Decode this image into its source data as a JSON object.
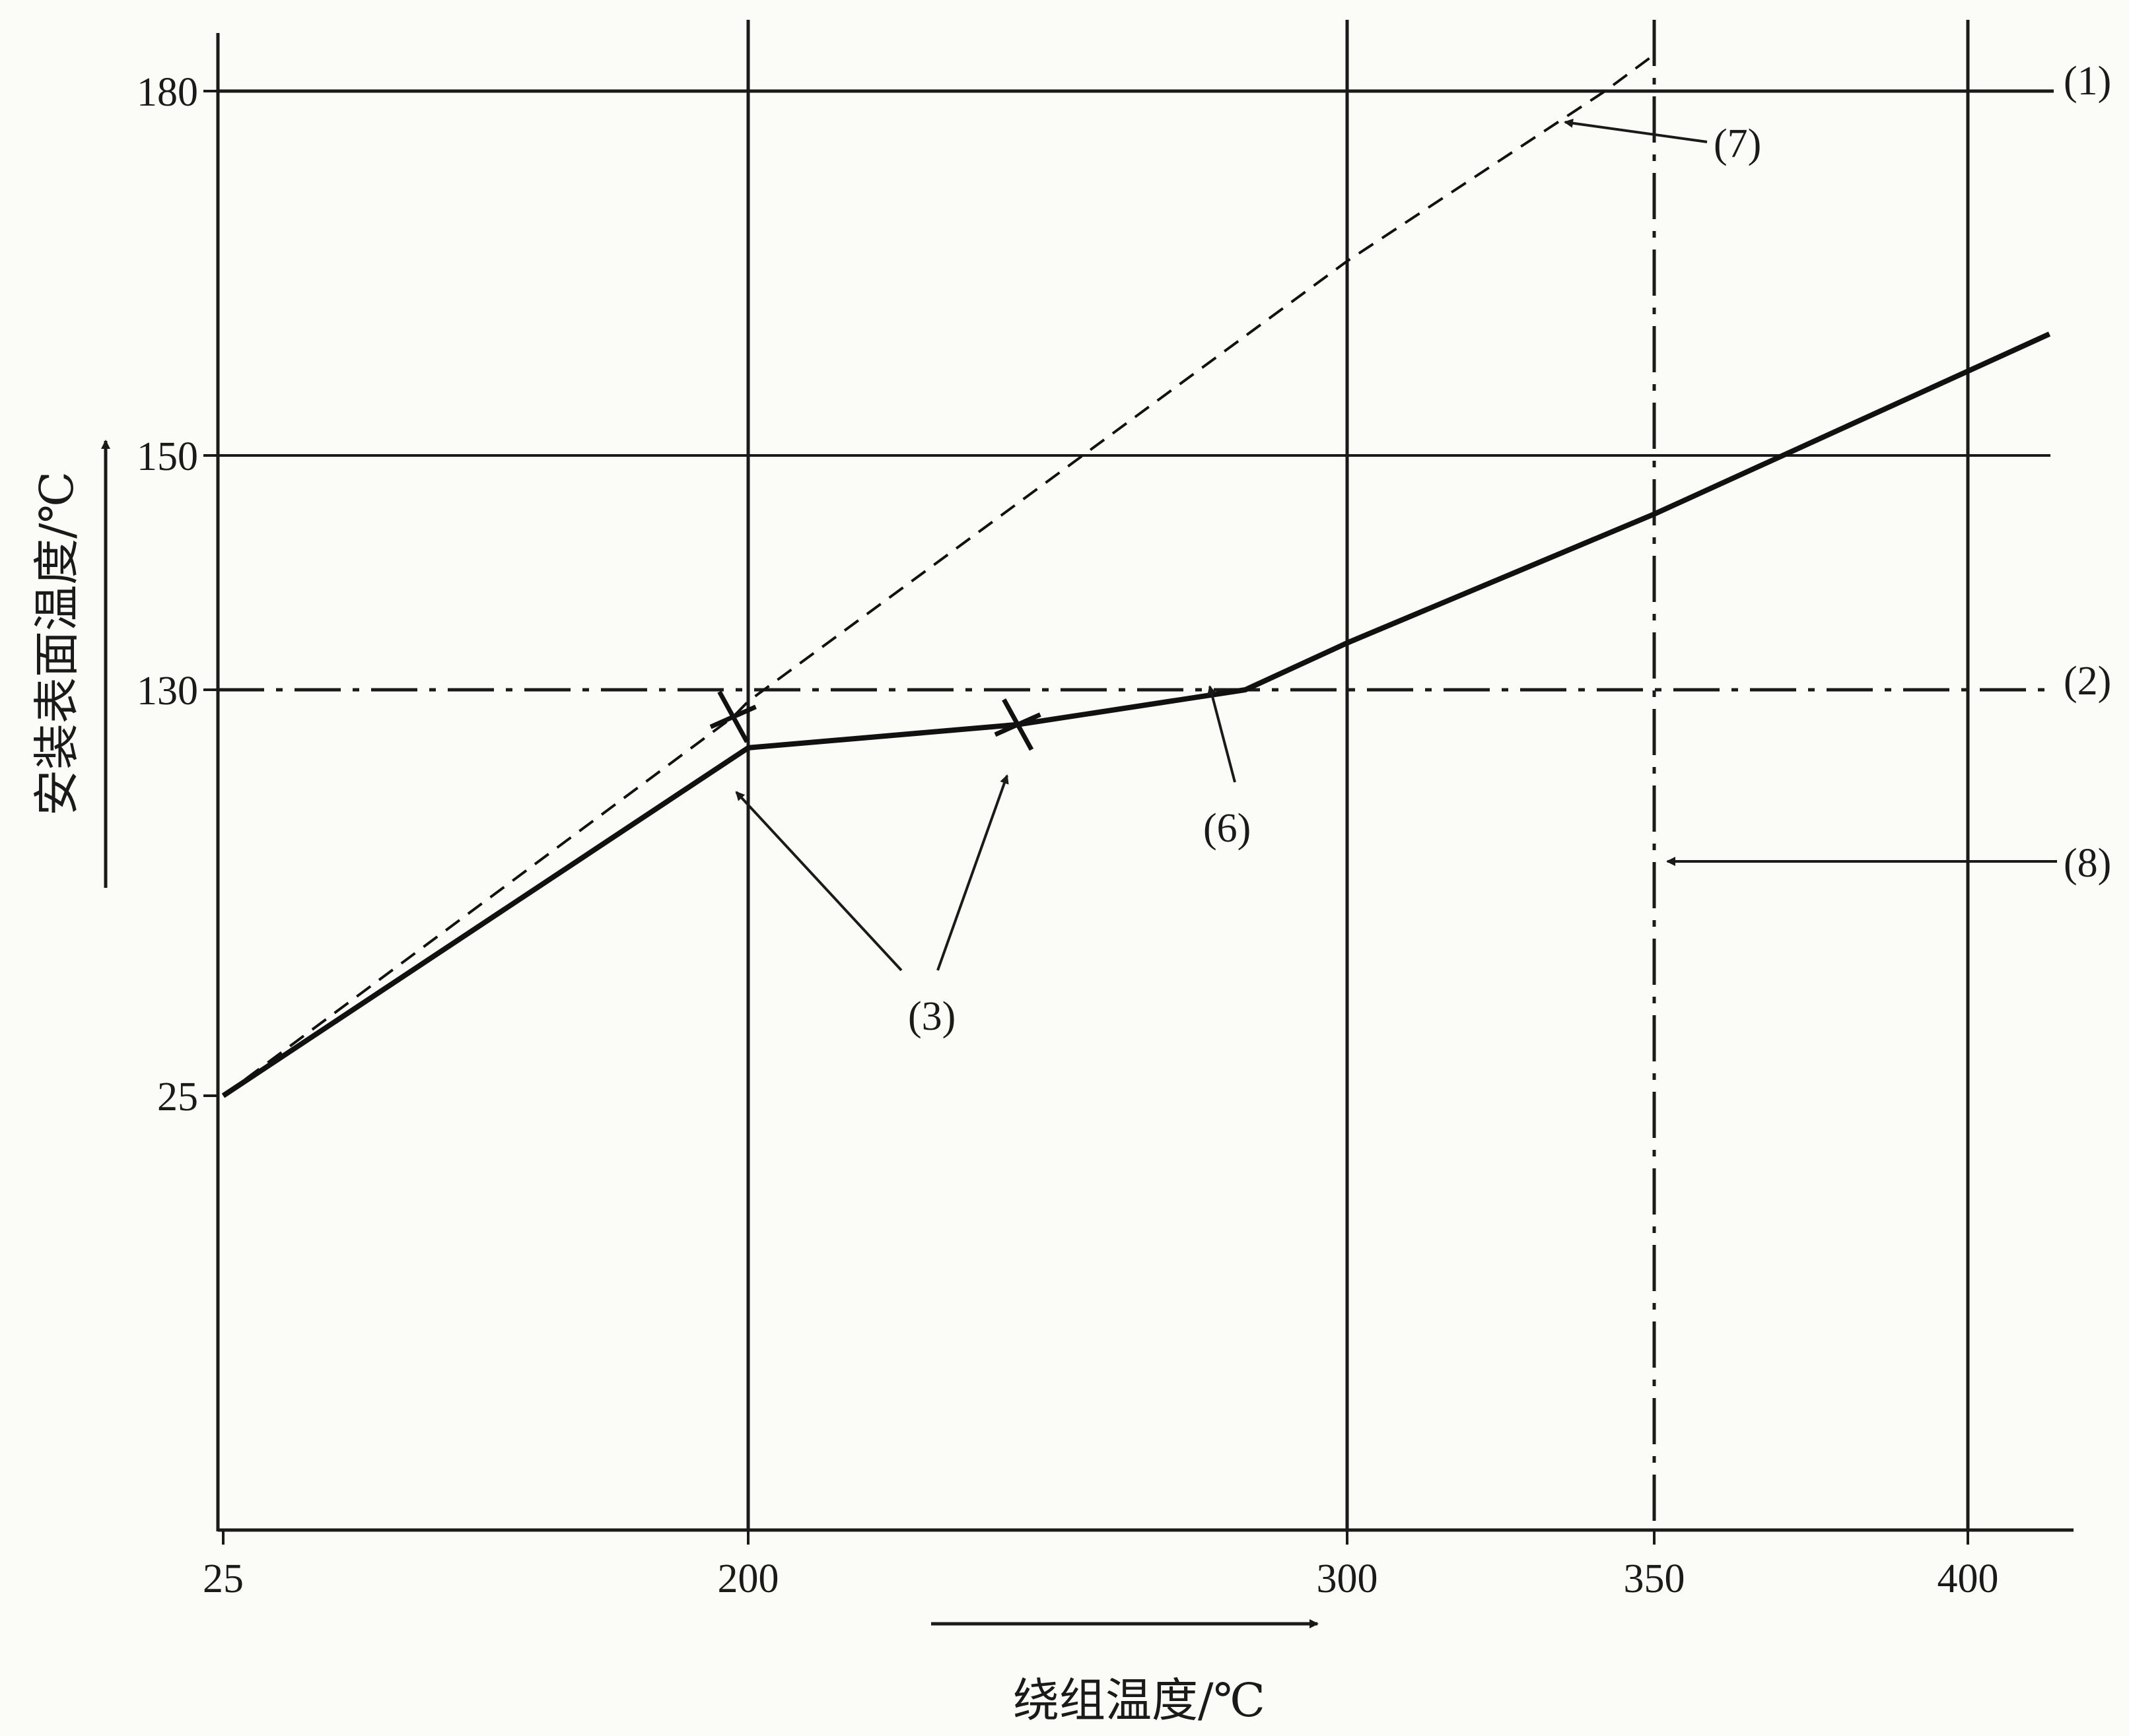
{
  "chart_data": {
    "type": "line",
    "title": "",
    "xlabel": "绕组温度/℃",
    "ylabel": "安装表面温度/℃",
    "x_ticks": [
      "25",
      "200",
      "300",
      "350",
      "400"
    ],
    "y_ticks": [
      "25",
      "130",
      "150",
      "180"
    ],
    "x_tick_values": [
      25,
      200,
      300,
      350,
      400
    ],
    "y_tick_values": [
      25,
      130,
      150,
      180
    ],
    "grid": true,
    "series": [
      {
        "style": "solid",
        "x": [
          25,
          200,
          245,
          283,
          300,
          350,
          413
        ],
        "y": [
          25,
          115,
          121,
          130,
          134,
          145,
          160
        ]
      },
      {
        "style": "dashed",
        "x": [
          25,
          195,
          200,
          300,
          342,
          350
        ],
        "y": [
          25,
          123,
          127,
          166,
          180,
          183
        ]
      }
    ],
    "reference_lines": [
      {
        "orientation": "horizontal",
        "value": 180,
        "style": "solid",
        "label": "(1)"
      },
      {
        "orientation": "horizontal",
        "value": 130,
        "style": "dash-dot",
        "label": "(2)"
      },
      {
        "orientation": "vertical",
        "value": 350,
        "style": "dash-dot",
        "label": "(8)"
      }
    ],
    "markers": [
      {
        "x": 195,
        "y": 123,
        "symbol": "x"
      },
      {
        "x": 245,
        "y": 121,
        "symbol": "x"
      }
    ],
    "annotations": [
      {
        "label": "(3)",
        "targets": "x-markers"
      },
      {
        "label": "(6)",
        "target_x": 283,
        "target_y": 130
      },
      {
        "label": "(7)",
        "target_x": 330,
        "target_y": 176
      }
    ]
  }
}
